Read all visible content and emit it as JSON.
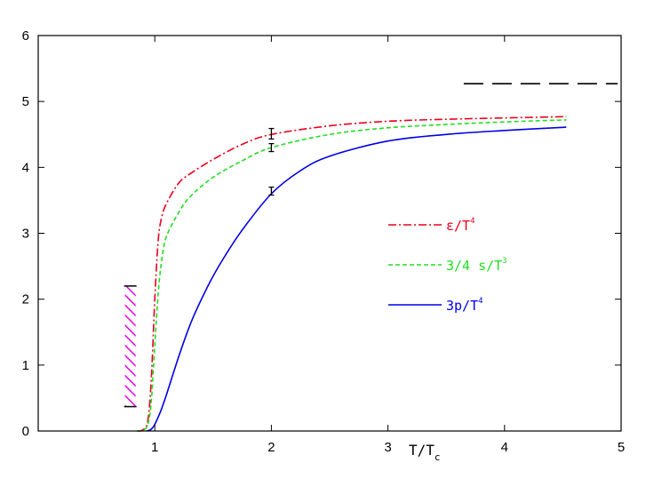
{
  "chart_data": {
    "type": "line",
    "xlim": [
      0,
      5
    ],
    "ylim": [
      0,
      6
    ],
    "x_ticks": [
      1,
      2,
      3,
      4,
      5
    ],
    "y_ticks": [
      0,
      1,
      2,
      3,
      4,
      5,
      6
    ],
    "xlabel": {
      "main": "T/T",
      "sub": "c"
    },
    "grid": false,
    "legend_position": "center-right",
    "series": [
      {
        "name": "ε/T⁴",
        "legend": {
          "main": "ε/T",
          "sup": "4"
        },
        "color": "#e8001c",
        "dash": "dash-dot",
        "x": [
          0.85,
          0.9,
          0.94,
          0.97,
          1.0,
          1.03,
          1.06,
          1.1,
          1.2,
          1.3,
          1.5,
          1.75,
          2.0,
          2.5,
          3.0,
          3.5,
          4.0,
          4.53
        ],
        "y": [
          0.0,
          0.02,
          0.15,
          0.8,
          2.0,
          2.9,
          3.25,
          3.45,
          3.75,
          3.9,
          4.12,
          4.35,
          4.5,
          4.63,
          4.7,
          4.73,
          4.75,
          4.77
        ]
      },
      {
        "name": "3/4 s/T³",
        "legend": {
          "main": "3/4 s/T",
          "sup": "3"
        },
        "color": "#22dd22",
        "dash": "dashed",
        "x": [
          0.85,
          0.9,
          0.94,
          0.97,
          1.0,
          1.03,
          1.06,
          1.1,
          1.2,
          1.3,
          1.5,
          1.75,
          2.0,
          2.5,
          3.0,
          3.5,
          4.0,
          4.53
        ],
        "y": [
          0.0,
          0.01,
          0.1,
          0.45,
          1.3,
          2.1,
          2.6,
          2.95,
          3.3,
          3.55,
          3.85,
          4.1,
          4.3,
          4.5,
          4.6,
          4.65,
          4.69,
          4.72
        ]
      },
      {
        "name": "3p/T⁴",
        "legend": {
          "main": "3p/T",
          "sup": "4"
        },
        "color": "#0000e6",
        "dash": "solid",
        "x": [
          0.93,
          0.95,
          0.97,
          1.0,
          1.05,
          1.1,
          1.2,
          1.3,
          1.4,
          1.5,
          1.6,
          1.75,
          2.0,
          2.25,
          2.5,
          3.0,
          3.5,
          4.0,
          4.53
        ],
        "y": [
          0.0,
          0.01,
          0.03,
          0.1,
          0.3,
          0.55,
          1.1,
          1.6,
          2.0,
          2.35,
          2.65,
          3.05,
          3.6,
          3.95,
          4.17,
          4.4,
          4.5,
          4.56,
          4.61
        ]
      }
    ],
    "error_bars": [
      {
        "x": 2.0,
        "low": 4.43,
        "high": 4.59,
        "color": "#000000"
      },
      {
        "x": 2.0,
        "low": 4.24,
        "high": 4.36,
        "color": "#000000"
      },
      {
        "x": 2.0,
        "low": 3.58,
        "high": 3.7,
        "color": "#000000"
      }
    ],
    "reference_line": {
      "x_start": 3.65,
      "x_end": 4.97,
      "y": 5.27,
      "color": "#000000",
      "dash": "long-dash"
    },
    "hatched_band": {
      "x": 0.79,
      "y_low": 0.37,
      "y_high": 2.2,
      "color": "#e800e8"
    }
  }
}
